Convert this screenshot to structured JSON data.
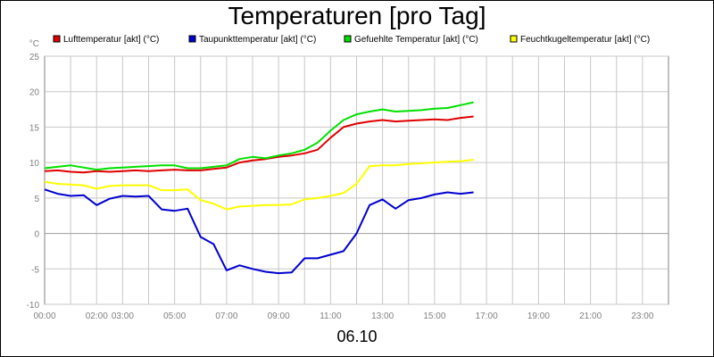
{
  "chart_data": {
    "type": "line",
    "title": "Temperaturen [pro Tag]",
    "ylabel": "°C",
    "xlabel": "06.10",
    "ylim": [
      -10,
      25
    ],
    "yticks": [
      "25",
      "20",
      "15",
      "10",
      "5",
      "0",
      "-5",
      "-10"
    ],
    "ytick_values": [
      25,
      20,
      15,
      10,
      5,
      0,
      -5,
      -10
    ],
    "xlim": [
      0,
      24
    ],
    "xticks": [
      "00:00",
      "02:00",
      "03:00",
      "05:00",
      "07:00",
      "09:00",
      "11:00",
      "13:00",
      "15:00",
      "17:00",
      "19:00",
      "21:00",
      "23:00"
    ],
    "xtick_values": [
      0,
      2,
      3,
      5,
      7,
      9,
      11,
      13,
      15,
      17,
      19,
      21,
      23
    ],
    "grid": true,
    "legend_position": "top",
    "series": [
      {
        "name": "Lufttemperatur [akt] (°C)",
        "color": "#e00000",
        "x": [
          0,
          0.5,
          1,
          1.5,
          2,
          2.5,
          3,
          3.5,
          4,
          4.5,
          5,
          5.5,
          6,
          6.5,
          7,
          7.5,
          8,
          8.5,
          9,
          9.5,
          10,
          10.5,
          11,
          11.5,
          12,
          12.5,
          13,
          13.5,
          14,
          14.5,
          15,
          15.5,
          16,
          16.5
        ],
        "values": [
          8.8,
          8.9,
          8.7,
          8.6,
          8.8,
          8.7,
          8.8,
          8.9,
          8.8,
          8.9,
          9.0,
          8.9,
          8.9,
          9.1,
          9.3,
          10.0,
          10.3,
          10.5,
          10.8,
          11.0,
          11.3,
          11.8,
          13.5,
          15.0,
          15.5,
          15.8,
          16.0,
          15.8,
          15.9,
          16.0,
          16.1,
          16.0,
          16.3,
          16.5
        ]
      },
      {
        "name": "Taupunkttemperatur [akt] (°C)",
        "color": "#0000d0",
        "x": [
          0,
          0.5,
          1,
          1.5,
          2,
          2.5,
          3,
          3.5,
          4,
          4.5,
          5,
          5.5,
          6,
          6.5,
          7,
          7.5,
          8,
          8.5,
          9,
          9.5,
          10,
          10.5,
          11,
          11.5,
          12,
          12.5,
          13,
          13.5,
          14,
          14.5,
          15,
          15.5,
          16,
          16.5
        ],
        "values": [
          6.2,
          5.6,
          5.3,
          5.4,
          4.0,
          4.9,
          5.3,
          5.2,
          5.3,
          3.4,
          3.2,
          3.5,
          -0.5,
          -1.5,
          -5.2,
          -4.5,
          -5.0,
          -5.4,
          -5.6,
          -5.5,
          -3.5,
          -3.5,
          -3.0,
          -2.5,
          0.0,
          4.0,
          4.8,
          3.5,
          4.7,
          5.0,
          5.5,
          5.8,
          5.6,
          5.8
        ]
      },
      {
        "name": "Gefuehlte Temperatur [akt] (°C)",
        "color": "#00e000",
        "x": [
          0,
          0.5,
          1,
          1.5,
          2,
          2.5,
          3,
          3.5,
          4,
          4.5,
          5,
          5.5,
          6,
          6.5,
          7,
          7.5,
          8,
          8.5,
          9,
          9.5,
          10,
          10.5,
          11,
          11.5,
          12,
          12.5,
          13,
          13.5,
          14,
          14.5,
          15,
          15.5,
          16,
          16.5
        ],
        "values": [
          9.2,
          9.4,
          9.6,
          9.3,
          9.0,
          9.2,
          9.3,
          9.4,
          9.5,
          9.6,
          9.6,
          9.2,
          9.2,
          9.4,
          9.6,
          10.5,
          10.8,
          10.6,
          11.0,
          11.3,
          11.8,
          12.8,
          14.5,
          16.0,
          16.8,
          17.2,
          17.5,
          17.2,
          17.3,
          17.4,
          17.6,
          17.7,
          18.1,
          18.5
        ]
      },
      {
        "name": "Feuchtkugeltemperatur [akt] (°C)",
        "color": "#ffff00",
        "x": [
          0,
          0.5,
          1,
          1.5,
          2,
          2.5,
          3,
          3.5,
          4,
          4.5,
          5,
          5.5,
          6,
          6.5,
          7,
          7.5,
          8,
          8.5,
          9,
          9.5,
          10,
          10.5,
          11,
          11.5,
          12,
          12.5,
          13,
          13.5,
          14,
          14.5,
          15,
          15.5,
          16,
          16.5
        ],
        "values": [
          7.3,
          7.0,
          6.9,
          6.8,
          6.3,
          6.7,
          6.8,
          6.8,
          6.8,
          6.1,
          6.1,
          6.2,
          4.7,
          4.2,
          3.4,
          3.8,
          3.9,
          4.0,
          4.0,
          4.1,
          4.8,
          5.0,
          5.3,
          5.7,
          7.0,
          9.5,
          9.6,
          9.6,
          9.8,
          9.9,
          10.0,
          10.1,
          10.2,
          10.4
        ]
      }
    ]
  }
}
